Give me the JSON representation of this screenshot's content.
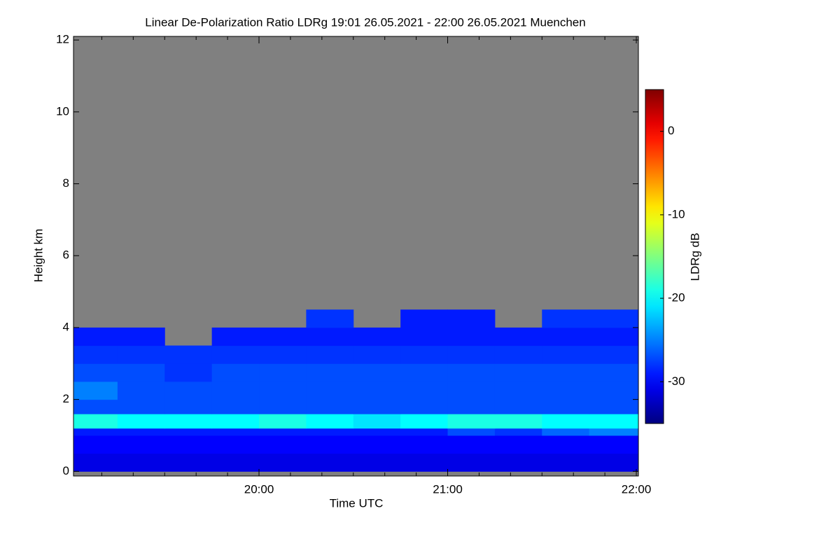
{
  "chart_data": {
    "type": "heatmap",
    "title": "Linear De-Polarization Ratio LDRg   19:01 26.05.2021 - 22:00 26.05.2021 Muenchen",
    "xlabel": "Time UTC",
    "ylabel": "Height km",
    "colorbar_label": "LDRg dB",
    "colormap": "jet",
    "nodata_color": "#808080",
    "xlim": [
      19.0167,
      22.011
    ],
    "ylim": [
      -0.13,
      12.1
    ],
    "clim": [
      -35,
      5
    ],
    "xticks": [
      {
        "value": 20,
        "label": "20:00"
      },
      {
        "value": 21,
        "label": "21:00"
      },
      {
        "value": 22,
        "label": "22:00"
      }
    ],
    "xminorticks": [
      19.1667,
      19.3333,
      19.5,
      19.6667,
      19.8333,
      20.1667,
      20.3333,
      20.5,
      20.6667,
      20.8333,
      21.1667,
      21.3333,
      21.5,
      21.6667,
      21.8333
    ],
    "yticks": [
      0,
      2,
      4,
      6,
      8,
      10,
      12
    ],
    "cticks": [
      0,
      -10,
      -20,
      -30
    ],
    "x_edges": [
      19.0167,
      19.25,
      19.5,
      19.75,
      20,
      20.25,
      20.5,
      20.75,
      21,
      21.25,
      21.5,
      21.75,
      22.011
    ],
    "y_edges": [
      0,
      0.5,
      1.0,
      1.2,
      1.6,
      2.0,
      2.5,
      3.0,
      3.5,
      4.0,
      4.5
    ],
    "z": [
      [
        -31,
        -31,
        -31,
        -31,
        -31,
        -31,
        -31,
        -31,
        -31,
        -31,
        -31,
        -31
      ],
      [
        -30,
        -30,
        -30,
        -30,
        -30,
        -30,
        -30,
        -30,
        -30,
        -30,
        -30,
        -30
      ],
      [
        -29,
        -29,
        -29,
        -29,
        -29,
        -29,
        -29,
        -29,
        -27,
        -28,
        -26,
        -25
      ],
      [
        -19,
        -20,
        -20,
        -20,
        -19,
        -20,
        -21,
        -20,
        -19,
        -19,
        -20,
        -20
      ],
      [
        -27,
        -27,
        -27,
        -27,
        -27,
        -27,
        -27,
        -27,
        -27,
        -27,
        -27,
        -27
      ],
      [
        -25,
        -27,
        -27,
        -27,
        -27,
        -27,
        -27,
        -27,
        -27,
        -27,
        -27,
        -27
      ],
      [
        -27,
        -27,
        -28,
        -27,
        -27,
        -27,
        -27,
        -27,
        -27,
        -27,
        -27,
        -27
      ],
      [
        -28,
        -28,
        -28,
        -28,
        -28,
        -28,
        -28,
        -28,
        -28,
        -28,
        -28,
        -28
      ],
      [
        -29,
        -29,
        null,
        -29,
        -29,
        -29,
        -29,
        -29,
        -29,
        -29,
        -29,
        -29
      ],
      [
        null,
        null,
        null,
        null,
        null,
        -28,
        null,
        -29,
        -29,
        null,
        -28,
        -28
      ]
    ]
  }
}
